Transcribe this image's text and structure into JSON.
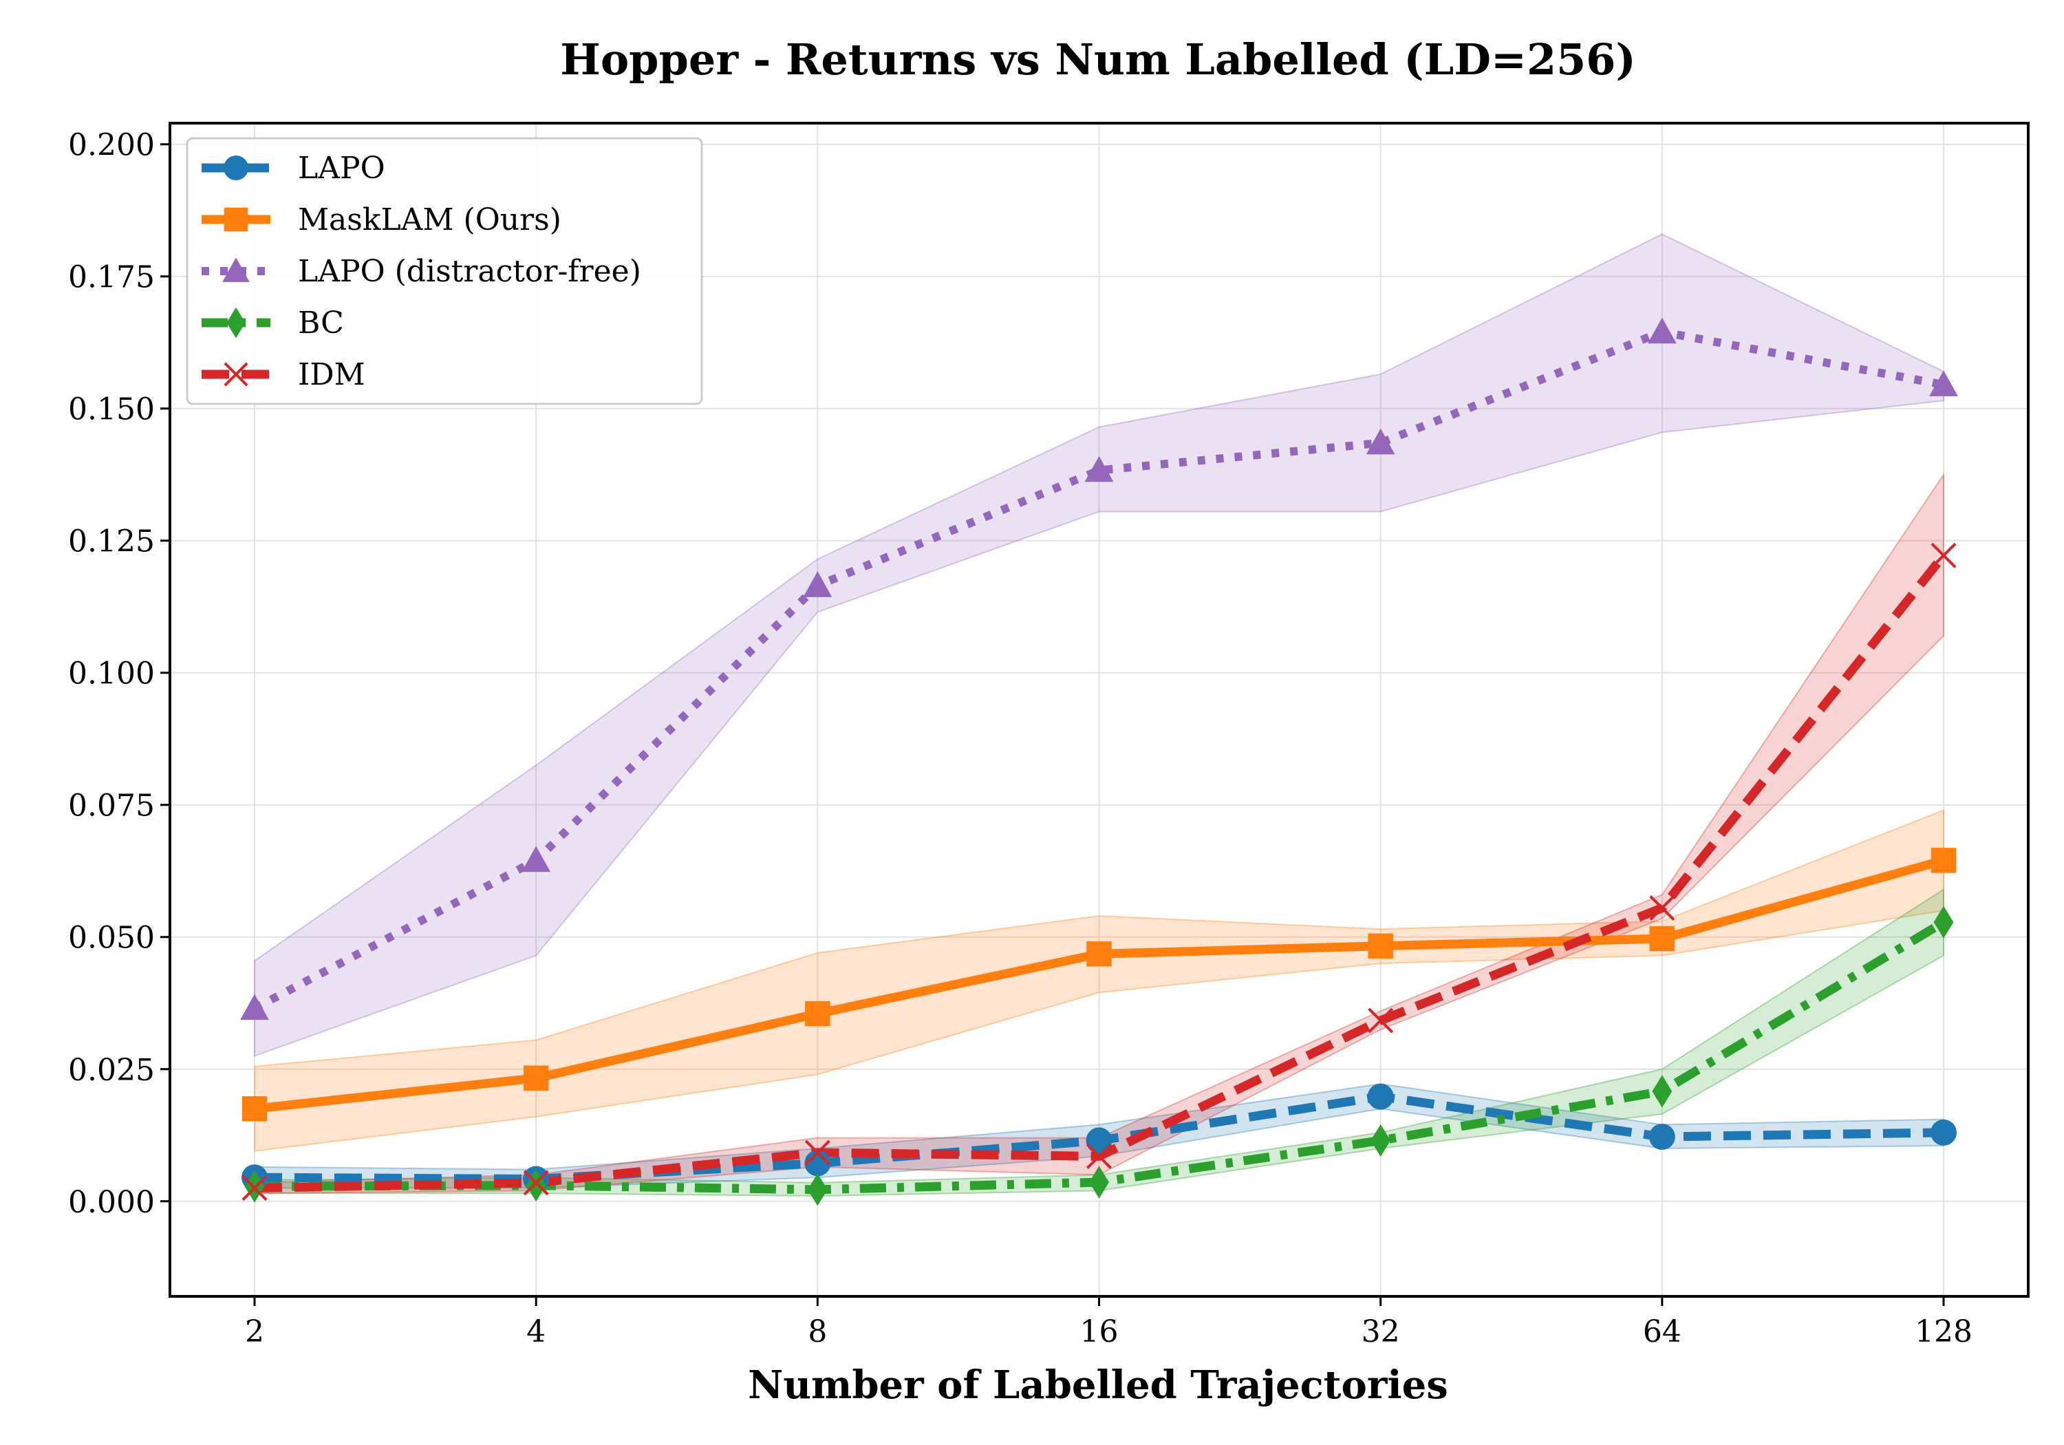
{
  "chart_data": {
    "type": "line",
    "title": "Hopper - Returns vs Num Labelled (LD=256)",
    "xlabel": "Number of Labelled Trajectories",
    "ylabel": "",
    "x": [
      2,
      4,
      8,
      16,
      32,
      64,
      128
    ],
    "x_tick_labels": [
      "2",
      "4",
      "8",
      "16",
      "32",
      "64",
      "128"
    ],
    "x_scale": "log2",
    "ylim": [
      -0.018,
      0.204
    ],
    "y_ticks": [
      0.0,
      0.025,
      0.05,
      0.075,
      0.1,
      0.125,
      0.15,
      0.175,
      0.2
    ],
    "y_tick_labels": [
      "0.000",
      "0.025",
      "0.050",
      "0.075",
      "0.100",
      "0.125",
      "0.150",
      "0.175",
      "0.200"
    ],
    "grid": true,
    "legend_position": "top-left",
    "series": [
      {
        "name": "LAPO (distractor-free)",
        "color": "#9467bd",
        "line_style": "dotted",
        "marker": "triangle",
        "values": [
          0.0365,
          0.0645,
          0.1165,
          0.1383,
          0.1435,
          0.1645,
          0.1545
        ],
        "lower": [
          0.0275,
          0.0465,
          0.1115,
          0.1305,
          0.1305,
          0.1455,
          0.1515
        ],
        "upper": [
          0.0455,
          0.0825,
          0.1215,
          0.1465,
          0.1565,
          0.183,
          0.157
        ]
      },
      {
        "name": "MaskLAM (Ours)",
        "color": "#ff7f0e",
        "line_style": "solid",
        "marker": "square",
        "values": [
          0.0175,
          0.0233,
          0.0355,
          0.0468,
          0.0483,
          0.0497,
          0.0645
        ],
        "lower": [
          0.0095,
          0.016,
          0.024,
          0.0395,
          0.045,
          0.0465,
          0.055
        ],
        "upper": [
          0.0255,
          0.0305,
          0.047,
          0.054,
          0.0515,
          0.053,
          0.074
        ]
      },
      {
        "name": "LAPO",
        "color": "#1f77b4",
        "line_style": "dashed",
        "marker": "circle",
        "values": [
          0.0045,
          0.0042,
          0.0072,
          0.0115,
          0.0198,
          0.0122,
          0.013
        ],
        "lower": [
          0.0025,
          0.0025,
          0.0045,
          0.0085,
          0.0175,
          0.01,
          0.0105
        ],
        "upper": [
          0.0065,
          0.006,
          0.01,
          0.0145,
          0.0222,
          0.0145,
          0.0155
        ]
      },
      {
        "name": "BC",
        "color": "#2ca02c",
        "line_style": "dashdot",
        "marker": "diamond",
        "values": [
          0.0028,
          0.003,
          0.0022,
          0.0036,
          0.0115,
          0.0208,
          0.0528
        ],
        "lower": [
          0.0015,
          0.0015,
          0.001,
          0.002,
          0.01,
          0.0165,
          0.0465
        ],
        "upper": [
          0.004,
          0.0045,
          0.0035,
          0.005,
          0.013,
          0.025,
          0.059
        ]
      },
      {
        "name": "IDM",
        "color": "#d62728",
        "line_style": "dashed",
        "marker": "x",
        "values": [
          0.0025,
          0.0035,
          0.0092,
          0.0085,
          0.0342,
          0.0555,
          0.1222
        ],
        "lower": [
          0.0015,
          0.002,
          0.0065,
          0.005,
          0.0325,
          0.0535,
          0.107
        ],
        "upper": [
          0.0035,
          0.005,
          0.012,
          0.012,
          0.036,
          0.058,
          0.1375
        ]
      }
    ],
    "legend_order": [
      "LAPO",
      "MaskLAM (Ours)",
      "LAPO (distractor-free)",
      "BC",
      "IDM"
    ]
  }
}
